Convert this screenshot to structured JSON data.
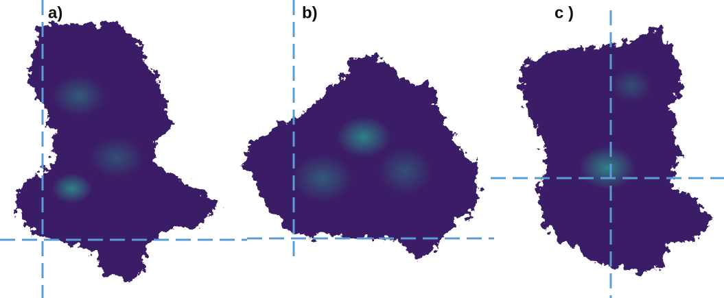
{
  "panels": [
    {
      "label": "a)"
    },
    {
      "label": "b)"
    },
    {
      "label": "c )"
    }
  ]
}
